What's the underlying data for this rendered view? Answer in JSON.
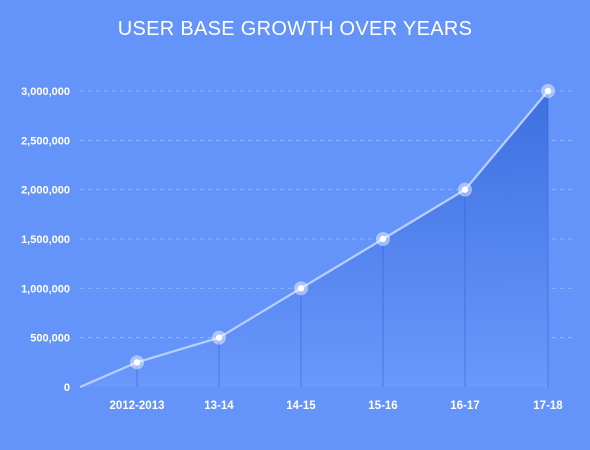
{
  "chart_data": {
    "type": "area",
    "title": "USER BASE GROWTH OVER YEARS",
    "xlabel": "",
    "ylabel": "",
    "categories": [
      "2012-2013",
      "13-14",
      "14-15",
      "15-16",
      "16-17",
      "17-18"
    ],
    "values": [
      250000,
      500000,
      1000000,
      1500000,
      2000000,
      3000000
    ],
    "ylim": [
      0,
      3000000
    ],
    "y_ticks": [
      "0",
      "500,000",
      "1,000,000",
      "1,500,000",
      "2,000,000",
      "2,500,000",
      "3,000,000"
    ],
    "grid": true,
    "legend": "none"
  },
  "colors": {
    "background": "#6494fa",
    "area_top": "#3d6fe0",
    "area_bottom": "#6a98fb",
    "line": "#b9cffd",
    "marker": "#ffffff"
  }
}
